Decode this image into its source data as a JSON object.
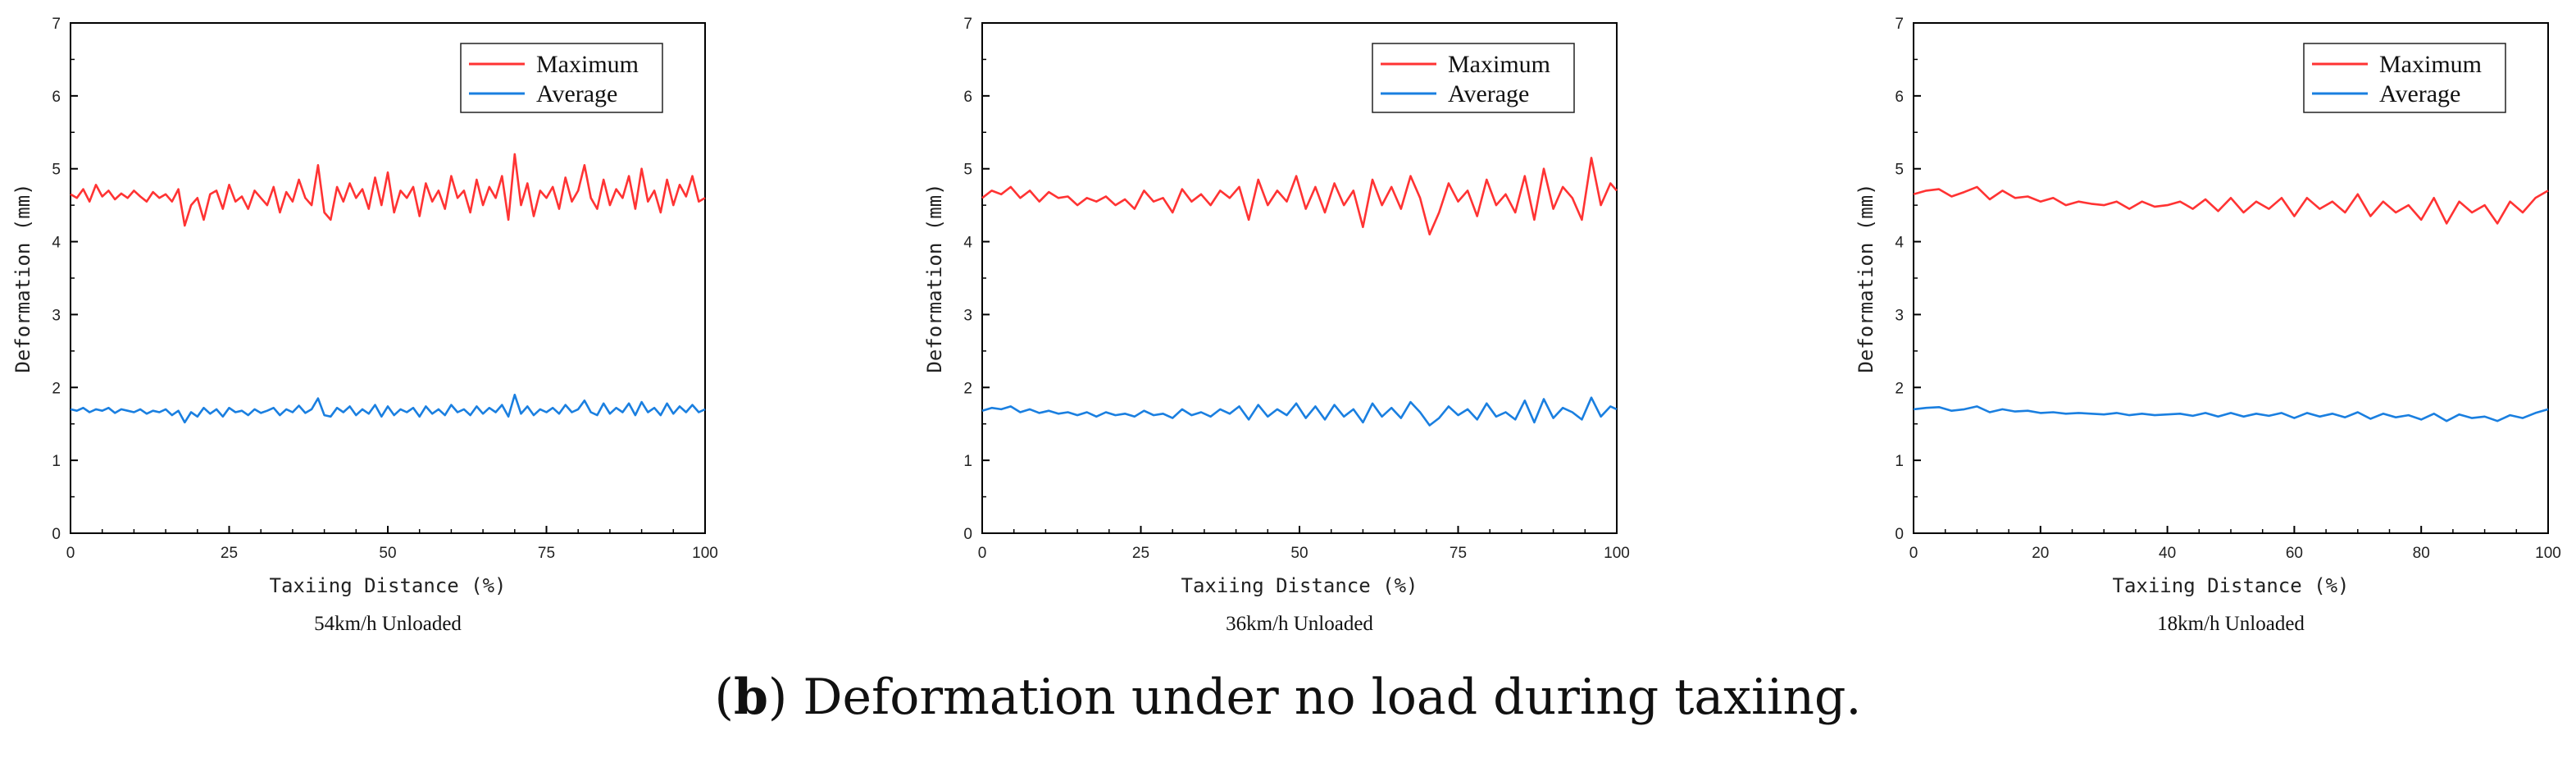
{
  "caption": {
    "label": "b",
    "text": "Deformation under no load during taxiing."
  },
  "chart_data": [
    {
      "type": "line",
      "title": "54km/h Unloaded",
      "xlabel": "Taxiing Distance (%)",
      "ylabel": "Deformation (mm)",
      "xlim": [
        0,
        100
      ],
      "ylim": [
        0,
        7
      ],
      "xticks": [
        0,
        25,
        50,
        75,
        100
      ],
      "yticks": [
        0,
        1,
        2,
        3,
        4,
        5,
        6,
        7
      ],
      "legend": "top-right",
      "colors": {
        "Maximum": "#ff3333",
        "Average": "#1a7fe0"
      },
      "series": [
        {
          "name": "Maximum",
          "x": [
            0,
            1,
            2,
            3,
            4,
            5,
            6,
            7,
            8,
            9,
            10,
            11,
            12,
            13,
            14,
            15,
            16,
            17,
            18,
            19,
            20,
            21,
            22,
            23,
            24,
            25,
            26,
            27,
            28,
            29,
            30,
            31,
            32,
            33,
            34,
            35,
            36,
            37,
            38,
            39,
            40,
            41,
            42,
            43,
            44,
            45,
            46,
            47,
            48,
            49,
            50,
            51,
            52,
            53,
            54,
            55,
            56,
            57,
            58,
            59,
            60,
            61,
            62,
            63,
            64,
            65,
            66,
            67,
            68,
            69,
            70,
            71,
            72,
            73,
            74,
            75,
            76,
            77,
            78,
            79,
            80,
            81,
            82,
            83,
            84,
            85,
            86,
            87,
            88,
            89,
            90,
            91,
            92,
            93,
            94,
            95,
            96,
            97,
            98,
            99,
            100
          ],
          "values": [
            4.65,
            4.6,
            4.72,
            4.55,
            4.78,
            4.62,
            4.7,
            4.58,
            4.66,
            4.6,
            4.7,
            4.62,
            4.55,
            4.68,
            4.6,
            4.65,
            4.55,
            4.72,
            4.22,
            4.5,
            4.6,
            4.3,
            4.65,
            4.7,
            4.45,
            4.78,
            4.55,
            4.62,
            4.45,
            4.7,
            4.6,
            4.5,
            4.75,
            4.4,
            4.68,
            4.55,
            4.85,
            4.6,
            4.5,
            5.05,
            4.4,
            4.3,
            4.75,
            4.55,
            4.8,
            4.6,
            4.72,
            4.45,
            4.88,
            4.5,
            4.95,
            4.4,
            4.7,
            4.6,
            4.75,
            4.35,
            4.8,
            4.55,
            4.7,
            4.45,
            4.9,
            4.6,
            4.7,
            4.4,
            4.85,
            4.5,
            4.75,
            4.6,
            4.9,
            4.3,
            5.2,
            4.5,
            4.8,
            4.35,
            4.7,
            4.6,
            4.75,
            4.45,
            4.88,
            4.55,
            4.7,
            5.05,
            4.6,
            4.45,
            4.85,
            4.5,
            4.72,
            4.6,
            4.9,
            4.45,
            5.0,
            4.55,
            4.7,
            4.4,
            4.85,
            4.5,
            4.78,
            4.62,
            4.9,
            4.55,
            4.6
          ]
        },
        {
          "name": "Average",
          "x": [
            0,
            1,
            2,
            3,
            4,
            5,
            6,
            7,
            8,
            9,
            10,
            11,
            12,
            13,
            14,
            15,
            16,
            17,
            18,
            19,
            20,
            21,
            22,
            23,
            24,
            25,
            26,
            27,
            28,
            29,
            30,
            31,
            32,
            33,
            34,
            35,
            36,
            37,
            38,
            39,
            40,
            41,
            42,
            43,
            44,
            45,
            46,
            47,
            48,
            49,
            50,
            51,
            52,
            53,
            54,
            55,
            56,
            57,
            58,
            59,
            60,
            61,
            62,
            63,
            64,
            65,
            66,
            67,
            68,
            69,
            70,
            71,
            72,
            73,
            74,
            75,
            76,
            77,
            78,
            79,
            80,
            81,
            82,
            83,
            84,
            85,
            86,
            87,
            88,
            89,
            90,
            91,
            92,
            93,
            94,
            95,
            96,
            97,
            98,
            99,
            100
          ],
          "values": [
            1.7,
            1.68,
            1.72,
            1.66,
            1.7,
            1.68,
            1.72,
            1.65,
            1.7,
            1.68,
            1.66,
            1.7,
            1.64,
            1.68,
            1.66,
            1.7,
            1.62,
            1.68,
            1.52,
            1.66,
            1.6,
            1.72,
            1.64,
            1.7,
            1.6,
            1.72,
            1.66,
            1.68,
            1.62,
            1.7,
            1.65,
            1.68,
            1.72,
            1.62,
            1.7,
            1.66,
            1.75,
            1.65,
            1.7,
            1.85,
            1.62,
            1.6,
            1.72,
            1.66,
            1.74,
            1.62,
            1.7,
            1.64,
            1.76,
            1.6,
            1.74,
            1.62,
            1.7,
            1.66,
            1.72,
            1.6,
            1.74,
            1.64,
            1.7,
            1.62,
            1.76,
            1.66,
            1.7,
            1.62,
            1.74,
            1.64,
            1.72,
            1.66,
            1.76,
            1.6,
            1.9,
            1.64,
            1.74,
            1.62,
            1.7,
            1.66,
            1.72,
            1.64,
            1.76,
            1.66,
            1.7,
            1.82,
            1.66,
            1.62,
            1.78,
            1.64,
            1.72,
            1.66,
            1.78,
            1.62,
            1.8,
            1.66,
            1.72,
            1.62,
            1.78,
            1.64,
            1.74,
            1.66,
            1.76,
            1.66,
            1.7
          ]
        }
      ]
    },
    {
      "type": "line",
      "title": "36km/h Unloaded",
      "xlabel": "Taxiing Distance (%)",
      "ylabel": "Deformation (mm)",
      "xlim": [
        0,
        100
      ],
      "ylim": [
        0,
        7
      ],
      "xticks": [
        0,
        25,
        50,
        75,
        100
      ],
      "yticks": [
        0,
        1,
        2,
        3,
        4,
        5,
        6,
        7
      ],
      "legend": "top-right",
      "colors": {
        "Maximum": "#ff3333",
        "Average": "#1a7fe0"
      },
      "series": [
        {
          "name": "Maximum",
          "x": [
            0,
            1.5,
            3,
            4.5,
            6,
            7.5,
            9,
            10.5,
            12,
            13.5,
            15,
            16.5,
            18,
            19.5,
            21,
            22.5,
            24,
            25.5,
            27,
            28.5,
            30,
            31.5,
            33,
            34.5,
            36,
            37.5,
            39,
            40.5,
            42,
            43.5,
            45,
            46.5,
            48,
            49.5,
            51,
            52.5,
            54,
            55.5,
            57,
            58.5,
            60,
            61.5,
            63,
            64.5,
            66,
            67.5,
            69,
            70.5,
            72,
            73.5,
            75,
            76.5,
            78,
            79.5,
            81,
            82.5,
            84,
            85.5,
            87,
            88.5,
            90,
            91.5,
            93,
            94.5,
            96,
            97.5,
            99,
            100
          ],
          "values": [
            4.6,
            4.7,
            4.65,
            4.75,
            4.6,
            4.7,
            4.55,
            4.68,
            4.6,
            4.62,
            4.5,
            4.6,
            4.55,
            4.62,
            4.5,
            4.58,
            4.45,
            4.7,
            4.55,
            4.6,
            4.4,
            4.72,
            4.55,
            4.65,
            4.5,
            4.7,
            4.6,
            4.75,
            4.3,
            4.85,
            4.5,
            4.7,
            4.55,
            4.9,
            4.45,
            4.75,
            4.4,
            4.8,
            4.5,
            4.7,
            4.2,
            4.85,
            4.5,
            4.75,
            4.45,
            4.9,
            4.6,
            4.1,
            4.4,
            4.8,
            4.55,
            4.7,
            4.35,
            4.85,
            4.5,
            4.65,
            4.4,
            4.9,
            4.3,
            5.0,
            4.45,
            4.75,
            4.6,
            4.3,
            5.15,
            4.5,
            4.8,
            4.7
          ]
        },
        {
          "name": "Average",
          "x": [
            0,
            1.5,
            3,
            4.5,
            6,
            7.5,
            9,
            10.5,
            12,
            13.5,
            15,
            16.5,
            18,
            19.5,
            21,
            22.5,
            24,
            25.5,
            27,
            28.5,
            30,
            31.5,
            33,
            34.5,
            36,
            37.5,
            39,
            40.5,
            42,
            43.5,
            45,
            46.5,
            48,
            49.5,
            51,
            52.5,
            54,
            55.5,
            57,
            58.5,
            60,
            61.5,
            63,
            64.5,
            66,
            67.5,
            69,
            70.5,
            72,
            73.5,
            75,
            76.5,
            78,
            79.5,
            81,
            82.5,
            84,
            85.5,
            87,
            88.5,
            90,
            91.5,
            93,
            94.5,
            96,
            97.5,
            99,
            100
          ],
          "values": [
            1.68,
            1.72,
            1.7,
            1.74,
            1.66,
            1.7,
            1.65,
            1.68,
            1.64,
            1.66,
            1.62,
            1.66,
            1.6,
            1.66,
            1.62,
            1.64,
            1.6,
            1.68,
            1.62,
            1.64,
            1.58,
            1.7,
            1.62,
            1.66,
            1.6,
            1.7,
            1.64,
            1.74,
            1.56,
            1.76,
            1.6,
            1.7,
            1.62,
            1.78,
            1.58,
            1.74,
            1.56,
            1.76,
            1.6,
            1.7,
            1.52,
            1.78,
            1.6,
            1.72,
            1.58,
            1.8,
            1.66,
            1.48,
            1.58,
            1.74,
            1.62,
            1.7,
            1.56,
            1.78,
            1.6,
            1.66,
            1.56,
            1.82,
            1.52,
            1.84,
            1.58,
            1.72,
            1.66,
            1.56,
            1.86,
            1.6,
            1.74,
            1.7
          ]
        }
      ]
    },
    {
      "type": "line",
      "title": "18km/h Unloaded",
      "xlabel": "Taxiing Distance (%)",
      "ylabel": "Deformation (mm)",
      "xlim": [
        0,
        100
      ],
      "ylim": [
        0,
        7
      ],
      "xticks": [
        0,
        20,
        40,
        60,
        80,
        100
      ],
      "yticks": [
        0,
        1,
        2,
        3,
        4,
        5,
        6,
        7
      ],
      "legend": "top-right",
      "colors": {
        "Maximum": "#ff3333",
        "Average": "#1a7fe0"
      },
      "series": [
        {
          "name": "Maximum",
          "x": [
            0,
            2,
            4,
            6,
            8,
            10,
            12,
            14,
            16,
            18,
            20,
            22,
            24,
            26,
            28,
            30,
            32,
            34,
            36,
            38,
            40,
            42,
            44,
            46,
            48,
            50,
            52,
            54,
            56,
            58,
            60,
            62,
            64,
            66,
            68,
            70,
            72,
            74,
            76,
            78,
            80,
            82,
            84,
            86,
            88,
            90,
            92,
            94,
            96,
            98,
            100
          ],
          "values": [
            4.65,
            4.7,
            4.72,
            4.62,
            4.68,
            4.75,
            4.58,
            4.7,
            4.6,
            4.62,
            4.55,
            4.6,
            4.5,
            4.55,
            4.52,
            4.5,
            4.55,
            4.45,
            4.55,
            4.48,
            4.5,
            4.55,
            4.45,
            4.58,
            4.42,
            4.6,
            4.4,
            4.55,
            4.45,
            4.6,
            4.35,
            4.6,
            4.45,
            4.55,
            4.4,
            4.65,
            4.35,
            4.55,
            4.4,
            4.5,
            4.3,
            4.6,
            4.25,
            4.55,
            4.4,
            4.5,
            4.25,
            4.55,
            4.4,
            4.6,
            4.7
          ]
        },
        {
          "name": "Average",
          "x": [
            0,
            2,
            4,
            6,
            8,
            10,
            12,
            14,
            16,
            18,
            20,
            22,
            24,
            26,
            28,
            30,
            32,
            34,
            36,
            38,
            40,
            42,
            44,
            46,
            48,
            50,
            52,
            54,
            56,
            58,
            60,
            62,
            64,
            66,
            68,
            70,
            72,
            74,
            76,
            78,
            80,
            82,
            84,
            86,
            88,
            90,
            92,
            94,
            96,
            98,
            100
          ],
          "values": [
            1.7,
            1.72,
            1.73,
            1.68,
            1.7,
            1.74,
            1.66,
            1.7,
            1.67,
            1.68,
            1.65,
            1.66,
            1.64,
            1.65,
            1.64,
            1.63,
            1.65,
            1.62,
            1.64,
            1.62,
            1.63,
            1.64,
            1.61,
            1.65,
            1.6,
            1.65,
            1.6,
            1.64,
            1.61,
            1.65,
            1.58,
            1.65,
            1.6,
            1.64,
            1.59,
            1.66,
            1.57,
            1.64,
            1.59,
            1.62,
            1.56,
            1.64,
            1.54,
            1.63,
            1.58,
            1.6,
            1.54,
            1.62,
            1.58,
            1.65,
            1.7
          ]
        }
      ]
    }
  ]
}
